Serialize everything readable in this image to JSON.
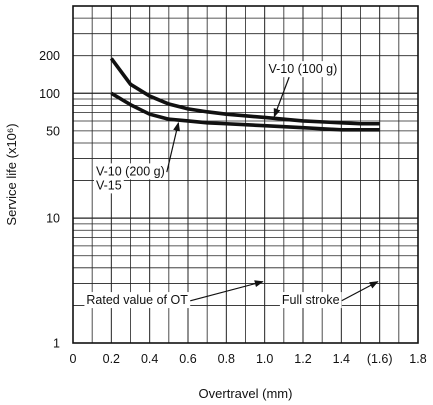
{
  "chart_data": {
    "type": "line",
    "title": "",
    "xlabel": "Overtravel (mm)",
    "ylabel": "Service life (x10⁶)",
    "x_scale": "linear",
    "y_scale": "log",
    "xlim": [
      0,
      1.8
    ],
    "ylim": [
      1,
      500
    ],
    "x_ticks": [
      {
        "value": 0,
        "label": "0"
      },
      {
        "value": 0.2,
        "label": "0.2"
      },
      {
        "value": 0.4,
        "label": "0.4"
      },
      {
        "value": 0.6,
        "label": "0.6"
      },
      {
        "value": 0.8,
        "label": "0.8"
      },
      {
        "value": 1.0,
        "label": "1.0"
      },
      {
        "value": 1.2,
        "label": "1.2"
      },
      {
        "value": 1.4,
        "label": "1.4"
      },
      {
        "value": 1.6,
        "label": "(1.6)"
      },
      {
        "value": 1.8,
        "label": "1.8"
      }
    ],
    "y_ticks": [
      {
        "value": 1,
        "label": "1"
      },
      {
        "value": 10,
        "label": "10"
      },
      {
        "value": 50,
        "label": "50"
      },
      {
        "value": 100,
        "label": "100"
      },
      {
        "value": 200,
        "label": "200"
      }
    ],
    "grid": true,
    "series": [
      {
        "name": "V-10 (100 g)",
        "x": [
          0.2,
          0.3,
          0.4,
          0.5,
          0.6,
          0.7,
          0.8,
          0.9,
          1.0,
          1.1,
          1.2,
          1.3,
          1.4,
          1.5,
          1.6
        ],
        "y": [
          190,
          118,
          95,
          82,
          75,
          71,
          68,
          66,
          64,
          62,
          60,
          59,
          58,
          57,
          57
        ]
      },
      {
        "name": "V-10 (200 g)",
        "x": [
          0.2,
          0.3,
          0.4,
          0.5,
          0.6,
          0.7,
          0.8,
          0.9,
          1.0,
          1.1,
          1.2,
          1.3,
          1.4,
          1.5,
          1.6
        ],
        "y": [
          100,
          81,
          68,
          62,
          60,
          58,
          57,
          56,
          55,
          54,
          53,
          52,
          51,
          51,
          51
        ]
      }
    ],
    "annotations": [
      {
        "text": "V-10 (100 g)",
        "x": 1.02,
        "y": 145,
        "arrow_to": [
          1.05,
          65
        ]
      },
      {
        "text": "V-10 (200 g)",
        "x": 0.12,
        "y": 22,
        "arrow_to": [
          0.55,
          58
        ]
      },
      {
        "text": "V-15",
        "x": 0.12,
        "y": 17
      },
      {
        "text": "Rated value of OT",
        "x": 0.07,
        "y": 2.05,
        "arrow_to": [
          0.99,
          3.1
        ]
      },
      {
        "text": "Full stroke",
        "x": 1.09,
        "y": 2.05,
        "arrow_to": [
          1.59,
          3.1
        ]
      }
    ]
  }
}
